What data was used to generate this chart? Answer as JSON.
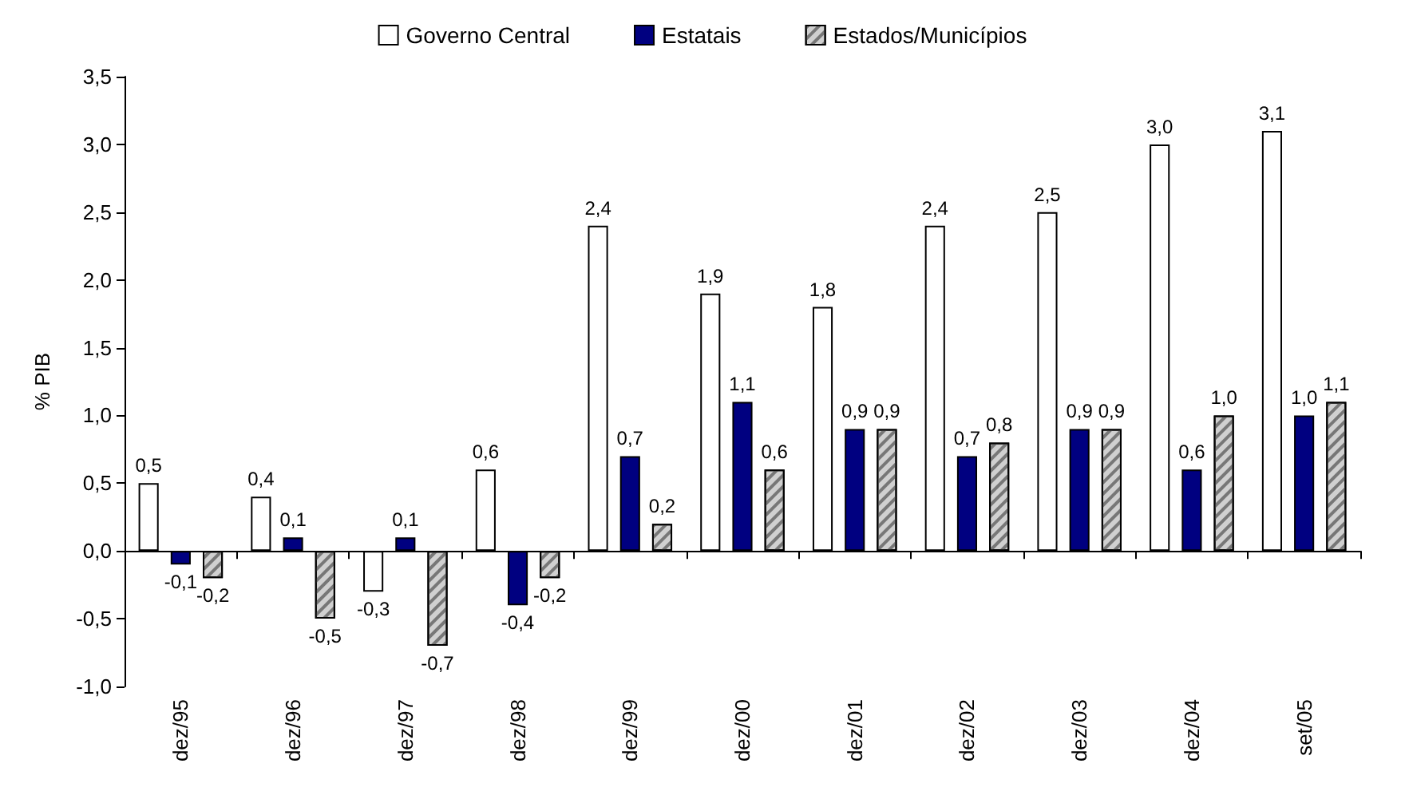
{
  "chart_data": {
    "type": "bar",
    "ylabel": "% PIB",
    "categories": [
      "dez/95",
      "dez/96",
      "dez/97",
      "dez/98",
      "dez/99",
      "dez/00",
      "dez/01",
      "dez/02",
      "dez/03",
      "dez/04",
      "set/05"
    ],
    "series": [
      {
        "name": "Governo Central",
        "color": "#ffffff",
        "values": [
          0.5,
          0.4,
          -0.3,
          0.6,
          2.4,
          1.9,
          1.8,
          2.4,
          2.5,
          3.0,
          3.1
        ],
        "value_labels": [
          "0,5",
          "0,4",
          "-0,3",
          "0,6",
          "2,4",
          "1,9",
          "1,8",
          "2,4",
          "2,5",
          "3,0",
          "3,1"
        ]
      },
      {
        "name": "Estatais",
        "color": "#000080",
        "values": [
          -0.1,
          0.1,
          0.1,
          -0.4,
          0.7,
          1.1,
          0.9,
          0.7,
          0.9,
          0.6,
          1.0
        ],
        "value_labels": [
          "-0,1",
          "0,1",
          "0,1",
          "-0,4",
          "0,7",
          "1,1",
          "0,9",
          "0,7",
          "0,9",
          "0,6",
          "1,0"
        ]
      },
      {
        "name": "Estados/Municípios",
        "color": "#d0d0d0",
        "values": [
          -0.2,
          -0.5,
          -0.7,
          -0.2,
          0.2,
          0.6,
          0.9,
          0.8,
          0.9,
          1.0,
          1.1
        ],
        "value_labels": [
          "-0,2",
          "-0,5",
          "-0,7",
          "-0,2",
          "0,2",
          "0,6",
          "0,9",
          "0,8",
          "0,9",
          "1,0",
          "1,1"
        ]
      }
    ],
    "ylim": [
      -1.0,
      3.5
    ],
    "yticks": [
      {
        "value": -1.0,
        "label": "-1,0"
      },
      {
        "value": -0.5,
        "label": "-0,5"
      },
      {
        "value": 0,
        "label": "0,0"
      },
      {
        "value": 0.5,
        "label": "0,5"
      },
      {
        "value": 1.0,
        "label": "1,0"
      },
      {
        "value": 1.5,
        "label": "1,5"
      },
      {
        "value": 2.0,
        "label": "2,0"
      },
      {
        "value": 2.5,
        "label": "2,5"
      },
      {
        "value": 3.0,
        "label": "3,0"
      },
      {
        "value": 3.5,
        "label": "3,5"
      }
    ],
    "legend": "top"
  }
}
